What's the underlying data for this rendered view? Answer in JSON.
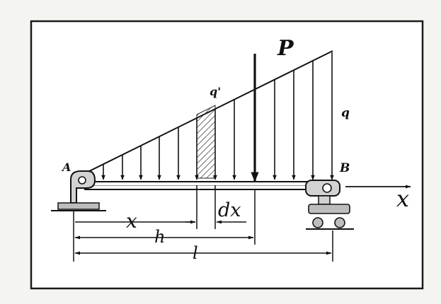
{
  "labels": {
    "support_a": "A",
    "support_b": "B",
    "point_load": "P",
    "load_at_x": "q'",
    "load_max": "q",
    "axis_x": "x",
    "dim_x": "x",
    "dim_dx": "dx",
    "dim_h": "h",
    "dim_l": "l"
  },
  "colors": {
    "ink": "#111111",
    "frame": "#1a1a1a",
    "paper": "#ffffff",
    "background": "#f4f4f1",
    "support_fill": "#bdbdbd"
  },
  "diagram": {
    "load_distribution": "triangular",
    "distributed_load_arrow_count": 13,
    "support_a": "fixed pin",
    "support_b": "roller"
  }
}
